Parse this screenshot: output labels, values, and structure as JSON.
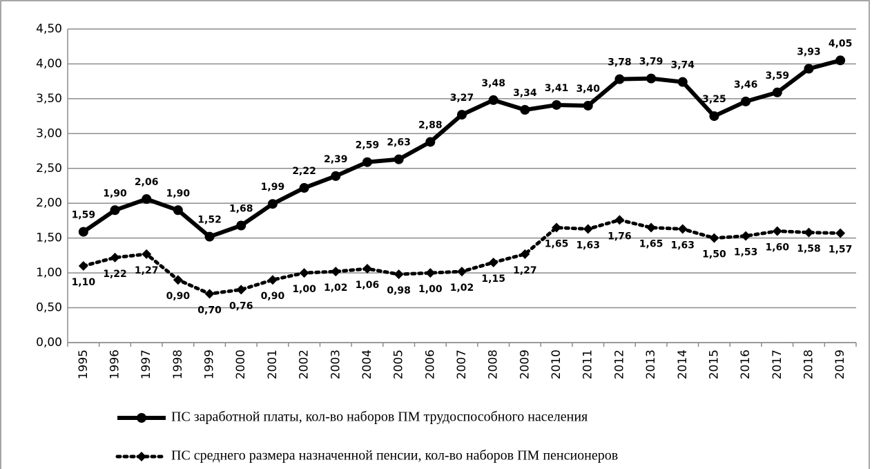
{
  "chart_data": {
    "type": "line",
    "categories": [
      "1995",
      "1996",
      "1997",
      "1998",
      "1999",
      "2000",
      "2001",
      "2002",
      "2003",
      "2004",
      "2005",
      "2006",
      "2007",
      "2008",
      "2009",
      "2010",
      "2011",
      "2012",
      "2013",
      "2014",
      "2015",
      "2016",
      "2017",
      "2018",
      "2019"
    ],
    "series": [
      {
        "name": "ПС заработной платы, кол-во наборов ПМ трудоспособного  населения",
        "color": "#000000",
        "line_style": "solid",
        "marker": "circle",
        "label_position": "above",
        "values": [
          1.59,
          1.9,
          2.06,
          1.9,
          1.52,
          1.68,
          1.99,
          2.22,
          2.39,
          2.59,
          2.63,
          2.88,
          3.27,
          3.48,
          3.34,
          3.41,
          3.4,
          3.78,
          3.79,
          3.74,
          3.25,
          3.46,
          3.59,
          3.93,
          4.05
        ],
        "value_labels": [
          "1,59",
          "1,90",
          "2,06",
          "1,90",
          "1,52",
          "1,68",
          "1,99",
          "2,22",
          "2,39",
          "2,59",
          "2,63",
          "2,88",
          "3,27",
          "3,48",
          "3,34",
          "3,41",
          "3,40",
          "3,78",
          "3,79",
          "3,74",
          "3,25",
          "3,46",
          "3,59",
          "3,93",
          "4,05"
        ]
      },
      {
        "name": "ПС среднего размера назначенной пенсии, кол-во наборов ПМ пенсионеров",
        "color": "#000000",
        "line_style": "dotted",
        "marker": "diamond",
        "label_position": "below",
        "values": [
          1.1,
          1.22,
          1.27,
          0.9,
          0.7,
          0.76,
          0.9,
          1.0,
          1.02,
          1.06,
          0.98,
          1.0,
          1.02,
          1.15,
          1.27,
          1.65,
          1.63,
          1.76,
          1.65,
          1.63,
          1.5,
          1.53,
          1.6,
          1.58,
          1.57
        ],
        "value_labels": [
          "1,10",
          "1,22",
          "1,27",
          "0,90",
          "0,70",
          "0,76",
          "0,90",
          "1,00",
          "1,02",
          "1,06",
          "0,98",
          "1,00",
          "1,02",
          "1,15",
          "1,27",
          "1,65",
          "1,63",
          "1,76",
          "1,65",
          "1,63",
          "1,50",
          "1,53",
          "1,60",
          "1,58",
          "1,57"
        ]
      }
    ],
    "ylim": [
      0,
      4.5
    ],
    "yticks": [
      {
        "value": 0,
        "label": "0,00"
      },
      {
        "value": 0.5,
        "label": "0,50"
      },
      {
        "value": 1,
        "label": "1,00"
      },
      {
        "value": 1.5,
        "label": "1,50"
      },
      {
        "value": 2,
        "label": "2,00"
      },
      {
        "value": 2.5,
        "label": "2,50"
      },
      {
        "value": 3,
        "label": "3,00"
      },
      {
        "value": 3.5,
        "label": "3,50"
      },
      {
        "value": 4,
        "label": "4,00"
      },
      {
        "value": 4.5,
        "label": "4,50"
      }
    ],
    "grid": true,
    "legend": "bottom"
  }
}
